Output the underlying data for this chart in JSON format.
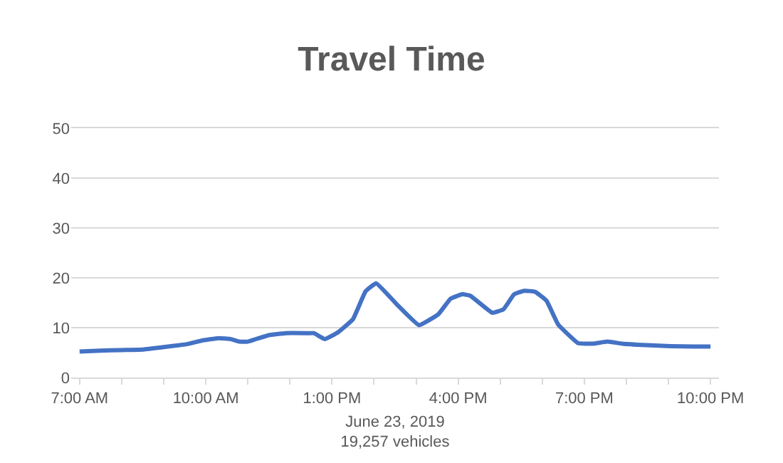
{
  "chart_data": {
    "type": "line",
    "title": "Travel Time",
    "xlabel": "June 23, 2019\n19,257 vehicles",
    "x": [
      7.0,
      7.5,
      8.0,
      8.5,
      8.9,
      9.55,
      9.9,
      10.3,
      10.6,
      10.8,
      11.0,
      11.5,
      11.9,
      12.45,
      12.57,
      12.83,
      13.15,
      13.5,
      13.8,
      14.05,
      14.55,
      15.07,
      15.53,
      15.82,
      16.1,
      16.29,
      16.81,
      17.08,
      17.33,
      17.57,
      17.83,
      18.1,
      18.38,
      18.85,
      19.2,
      19.55,
      19.9,
      20.47,
      21.05,
      21.6,
      22.0
    ],
    "series": [
      {
        "color": "#4472c4",
        "values": [
          5.2,
          5.4,
          5.5,
          5.6,
          6.0,
          6.7,
          7.4,
          7.9,
          7.7,
          7.2,
          7.2,
          8.5,
          8.9,
          8.9,
          8.9,
          7.7,
          9.1,
          11.7,
          17.3,
          18.9,
          14.6,
          10.5,
          12.7,
          15.8,
          16.7,
          16.4,
          13.0,
          13.7,
          16.7,
          17.4,
          17.2,
          15.4,
          10.6,
          6.9,
          6.8,
          7.2,
          6.8,
          6.5,
          6.3,
          6.2,
          6.2
        ]
      }
    ],
    "xlim": [
      6.8,
      22.2
    ],
    "xticks": [
      {
        "value": 7,
        "label": "7:00 AM"
      },
      {
        "value": 8,
        "label": null
      },
      {
        "value": 9,
        "label": null
      },
      {
        "value": 10,
        "label": "10:00 AM"
      },
      {
        "value": 11,
        "label": null
      },
      {
        "value": 12,
        "label": null
      },
      {
        "value": 13,
        "label": "1:00 PM"
      },
      {
        "value": 14,
        "label": null
      },
      {
        "value": 15,
        "label": null
      },
      {
        "value": 16,
        "label": "4:00 PM"
      },
      {
        "value": 17,
        "label": null
      },
      {
        "value": 18,
        "label": null
      },
      {
        "value": 19,
        "label": "7:00 PM"
      },
      {
        "value": 20,
        "label": null
      },
      {
        "value": 21,
        "label": null
      },
      {
        "value": 22,
        "label": "10:00 PM"
      }
    ],
    "ylim": [
      0,
      50
    ],
    "yticks": [
      0,
      10,
      20,
      30,
      40,
      50
    ],
    "grid": "y",
    "marker": "none",
    "line_style": "solid"
  }
}
